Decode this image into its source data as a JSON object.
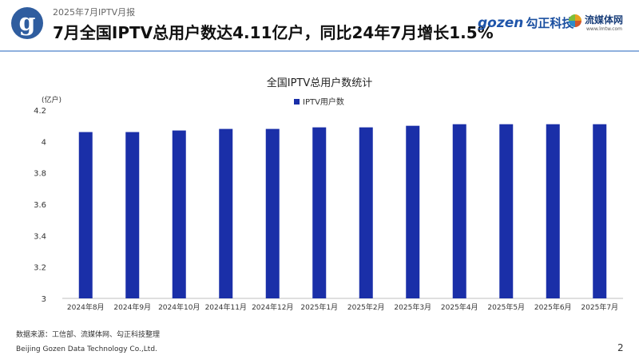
{
  "header": {
    "logo_letter": "g",
    "report_label": "2025年7月IPTV月报",
    "headline": "7月全国IPTV总用户数达4.11亿户，同比24年7月增长1.5%",
    "brand_gozen": {
      "mark": "gozen",
      "name": "勾正科技"
    },
    "brand_lm": {
      "name": "流媒体网",
      "url": "www.lmtw.com"
    }
  },
  "footer": {
    "source": "数据来源：工信部、流媒体网、勾正科技整理",
    "company": "Beijing Gozen Data Technology Co.,Ltd.",
    "page_number": "2"
  },
  "colors": {
    "bar": "#1a2fa8",
    "accent": "#1a4fa0",
    "rule": "#8fb0de"
  },
  "chart_data": {
    "type": "bar",
    "title": "全国IPTV总用户数统计",
    "unit_label": "(亿户)",
    "categories": [
      "2024年8月",
      "2024年9月",
      "2024年10月",
      "2024年11月",
      "2024年12月",
      "2025年1月",
      "2025年2月",
      "2025年3月",
      "2025年4月",
      "2025年5月",
      "2025年6月",
      "2025年7月"
    ],
    "series": [
      {
        "name": "IPTV用户数",
        "values": [
          4.06,
          4.06,
          4.07,
          4.08,
          4.08,
          4.09,
          4.09,
          4.1,
          4.11,
          4.11,
          4.11,
          4.11
        ]
      }
    ],
    "ylim": [
      3,
      4.2
    ],
    "yticks": [
      "3",
      "3.2",
      "3.4",
      "3.6",
      "3.8",
      "4",
      "4.2"
    ],
    "grid": false,
    "legend": "top-center"
  }
}
